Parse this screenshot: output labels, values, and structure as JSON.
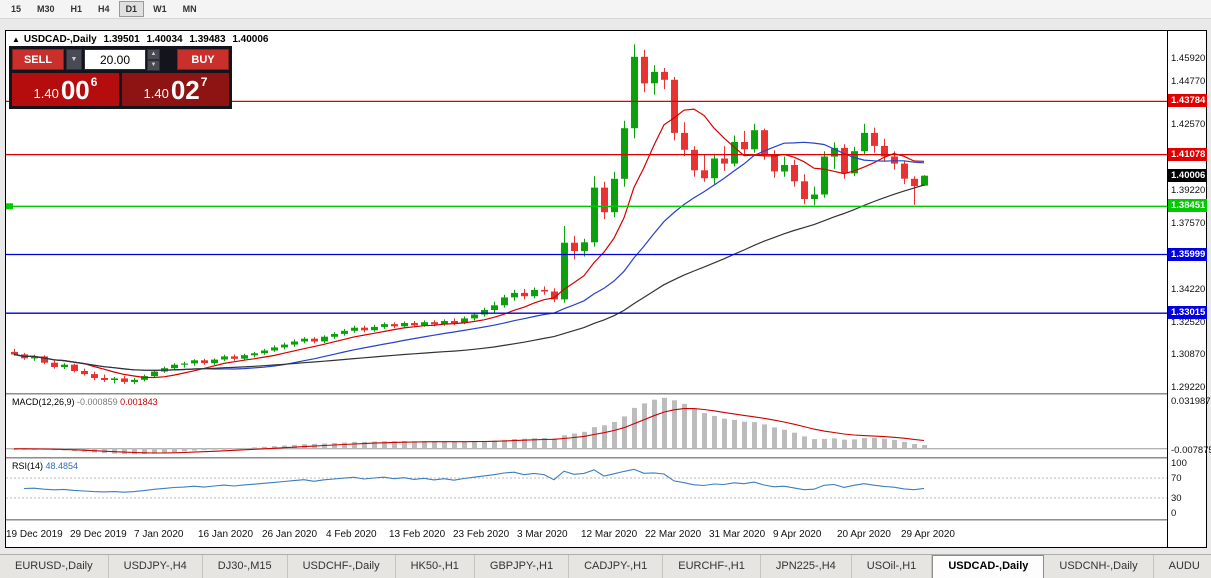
{
  "toolbar": {
    "timeframes": [
      {
        "label": "15",
        "active": false
      },
      {
        "label": "M30",
        "active": false
      },
      {
        "label": "H1",
        "active": false
      },
      {
        "label": "H4",
        "active": false
      },
      {
        "label": "D1",
        "active": true
      },
      {
        "label": "W1",
        "active": false
      },
      {
        "label": "MN",
        "active": false
      }
    ]
  },
  "chart_header": {
    "symbol": "USDCAD-,Daily",
    "open": "1.39501",
    "high": "1.40034",
    "low": "1.39483",
    "close": "1.40006"
  },
  "trade_panel": {
    "sell_label": "SELL",
    "buy_label": "BUY",
    "volume": "20.00",
    "sell_price": {
      "prefix": "1.40",
      "big": "00",
      "sup": "6"
    },
    "buy_price": {
      "prefix": "1.40",
      "big": "02",
      "sup": "7"
    }
  },
  "chart_data": {
    "type": "candlestick",
    "title": "USDCAD-,Daily",
    "symbol": "USDCAD-",
    "timeframe": "Daily",
    "price_range": {
      "top": 1.4736,
      "bottom": 1.2896
    },
    "price_axis_ticks": [
      1.4592,
      1.4477,
      1.4257,
      1.3922,
      1.3757,
      1.3422,
      1.3252,
      1.3087,
      1.2922
    ],
    "x_labels": [
      "19 Dec 2019",
      "29 Dec 2019",
      "7 Jan 2020",
      "16 Jan 2020",
      "26 Jan 2020",
      "4 Feb 2020",
      "13 Feb 2020",
      "23 Feb 2020",
      "3 Mar 2020",
      "12 Mar 2020",
      "22 Mar 2020",
      "31 Mar 2020",
      "9 Apr 2020",
      "20 Apr 2020",
      "29 Apr 2020"
    ],
    "colors": {
      "bull": "#0da00d",
      "bear": "#e83333"
    },
    "levels": [
      {
        "price": 1.43784,
        "label": "1.43784",
        "color": "#e10000",
        "left_marker": false
      },
      {
        "price": 1.41078,
        "label": "1.41078",
        "color": "#e10000",
        "left_marker": false
      },
      {
        "price": 1.38451,
        "label": "1.38451",
        "color": "#00cb00",
        "left_marker": true
      },
      {
        "price": 1.35999,
        "label": "1.35999",
        "color": "#0000e1",
        "left_marker": false
      },
      {
        "price": 1.33015,
        "label": "1.33015",
        "color": "#0000e1",
        "left_marker": false
      }
    ],
    "current_price": {
      "price": 1.40006,
      "label": "1.40006",
      "color": "#000000"
    },
    "moving_averages": [
      {
        "period": 8,
        "color": "#d40000"
      },
      {
        "period": 20,
        "color": "#2742c8"
      },
      {
        "period": 45,
        "color": "#333333"
      }
    ],
    "macd": {
      "label": "MACD(12,26,9)",
      "value_main": "-0.000859",
      "value_signal": "0.001843",
      "fast": 12,
      "slow": 26,
      "signal": 9,
      "axis_labels": [
        "0.031987",
        "-0.007875"
      ],
      "histogram_color": "#bcbcbc",
      "signal_color": "#cc0000"
    },
    "rsi": {
      "label": "RSI(14)",
      "value": "48.4854",
      "period": 14,
      "axis_labels": [
        "100",
        "70",
        "30",
        "0"
      ],
      "guide_levels": [
        70,
        30
      ],
      "color": "#3c7ebf"
    },
    "candles": [
      [
        1.3105,
        1.312,
        1.3085,
        1.3092
      ],
      [
        1.3092,
        1.31,
        1.3065,
        1.3072
      ],
      [
        1.3072,
        1.309,
        1.306,
        1.3082
      ],
      [
        1.3082,
        1.3088,
        1.3042,
        1.305
      ],
      [
        1.305,
        1.3062,
        1.302,
        1.3028
      ],
      [
        1.3028,
        1.3048,
        1.3018,
        1.304
      ],
      [
        1.304,
        1.3045,
        1.3,
        1.3008
      ],
      [
        1.3008,
        1.302,
        1.2985,
        1.2992
      ],
      [
        1.2992,
        1.3005,
        1.296,
        1.2972
      ],
      [
        1.2972,
        1.299,
        1.2952,
        1.2962
      ],
      [
        1.2962,
        1.2978,
        1.2945,
        1.297
      ],
      [
        1.297,
        1.2982,
        1.2942,
        1.2952
      ],
      [
        1.2952,
        1.2972,
        1.294,
        1.2963
      ],
      [
        1.2963,
        1.299,
        1.2955,
        1.2982
      ],
      [
        1.2982,
        1.3012,
        1.2975,
        1.3005
      ],
      [
        1.3005,
        1.303,
        1.2998,
        1.3022
      ],
      [
        1.3022,
        1.3048,
        1.3012,
        1.304
      ],
      [
        1.304,
        1.3055,
        1.3025,
        1.3046
      ],
      [
        1.3046,
        1.3068,
        1.3035,
        1.3062
      ],
      [
        1.3062,
        1.307,
        1.304,
        1.3048
      ],
      [
        1.3048,
        1.3072,
        1.304,
        1.3066
      ],
      [
        1.3066,
        1.309,
        1.3058,
        1.3082
      ],
      [
        1.3082,
        1.3092,
        1.306,
        1.307
      ],
      [
        1.307,
        1.3095,
        1.3062,
        1.3088
      ],
      [
        1.3088,
        1.3105,
        1.3078,
        1.3098
      ],
      [
        1.3098,
        1.312,
        1.309,
        1.3112
      ],
      [
        1.3112,
        1.3138,
        1.3105,
        1.3128
      ],
      [
        1.3128,
        1.3152,
        1.3118,
        1.3142
      ],
      [
        1.3142,
        1.3168,
        1.3132,
        1.3158
      ],
      [
        1.3158,
        1.318,
        1.3148,
        1.3172
      ],
      [
        1.3172,
        1.318,
        1.3148,
        1.3158
      ],
      [
        1.3158,
        1.319,
        1.315,
        1.3182
      ],
      [
        1.3182,
        1.3205,
        1.3172,
        1.3196
      ],
      [
        1.3196,
        1.3222,
        1.3188,
        1.3212
      ],
      [
        1.3212,
        1.3238,
        1.3202,
        1.3228
      ],
      [
        1.3228,
        1.3238,
        1.3205,
        1.3215
      ],
      [
        1.3215,
        1.3242,
        1.3208,
        1.3232
      ],
      [
        1.3232,
        1.3255,
        1.3222,
        1.3246
      ],
      [
        1.3246,
        1.3256,
        1.3225,
        1.3235
      ],
      [
        1.3235,
        1.326,
        1.3228,
        1.3252
      ],
      [
        1.3252,
        1.3262,
        1.323,
        1.324
      ],
      [
        1.324,
        1.3265,
        1.3232,
        1.3256
      ],
      [
        1.3256,
        1.3266,
        1.3235,
        1.3245
      ],
      [
        1.3245,
        1.327,
        1.3238,
        1.3262
      ],
      [
        1.3262,
        1.3275,
        1.324,
        1.3252
      ],
      [
        1.3252,
        1.3285,
        1.3245,
        1.3275
      ],
      [
        1.3275,
        1.3305,
        1.3265,
        1.3295
      ],
      [
        1.3295,
        1.333,
        1.3285,
        1.3318
      ],
      [
        1.3318,
        1.336,
        1.3305,
        1.3342
      ],
      [
        1.3342,
        1.3395,
        1.333,
        1.3382
      ],
      [
        1.3382,
        1.342,
        1.3365,
        1.3405
      ],
      [
        1.3405,
        1.3425,
        1.3372,
        1.3388
      ],
      [
        1.3388,
        1.3432,
        1.3378,
        1.342
      ],
      [
        1.342,
        1.3438,
        1.3395,
        1.3412
      ],
      [
        1.3412,
        1.3428,
        1.3358,
        1.3372
      ],
      [
        1.3372,
        1.3745,
        1.3355,
        1.366
      ],
      [
        1.366,
        1.3695,
        1.3575,
        1.3618
      ],
      [
        1.3618,
        1.368,
        1.359,
        1.3662
      ],
      [
        1.3662,
        1.3998,
        1.364,
        1.394
      ],
      [
        1.394,
        1.397,
        1.378,
        1.3815
      ],
      [
        1.3815,
        1.402,
        1.379,
        1.3985
      ],
      [
        1.3985,
        1.428,
        1.3945,
        1.4242
      ],
      [
        1.4242,
        1.4668,
        1.419,
        1.4605
      ],
      [
        1.4605,
        1.464,
        1.4425,
        1.447
      ],
      [
        1.447,
        1.4562,
        1.4412,
        1.4528
      ],
      [
        1.4528,
        1.4548,
        1.444,
        1.4488
      ],
      [
        1.4488,
        1.4502,
        1.418,
        1.4218
      ],
      [
        1.4218,
        1.4272,
        1.41,
        1.4132
      ],
      [
        1.4132,
        1.415,
        1.3995,
        1.4028
      ],
      [
        1.4028,
        1.4105,
        1.397,
        1.3988
      ],
      [
        1.3988,
        1.4112,
        1.3955,
        1.4088
      ],
      [
        1.4088,
        1.415,
        1.4025,
        1.4062
      ],
      [
        1.4062,
        1.4205,
        1.4048,
        1.4172
      ],
      [
        1.4172,
        1.4228,
        1.4105,
        1.4135
      ],
      [
        1.4135,
        1.4265,
        1.4118,
        1.4232
      ],
      [
        1.4232,
        1.424,
        1.4082,
        1.4105
      ],
      [
        1.4105,
        1.413,
        1.399,
        1.4022
      ],
      [
        1.4022,
        1.4098,
        1.3995,
        1.4055
      ],
      [
        1.4055,
        1.4082,
        1.3945,
        1.3972
      ],
      [
        1.3972,
        1.4008,
        1.3855,
        1.3882
      ],
      [
        1.3882,
        1.3945,
        1.385,
        1.3905
      ],
      [
        1.3905,
        1.4125,
        1.3888,
        1.4098
      ],
      [
        1.4098,
        1.417,
        1.4035,
        1.4142
      ],
      [
        1.4142,
        1.416,
        1.3985,
        1.4012
      ],
      [
        1.4012,
        1.4148,
        1.3998,
        1.4125
      ],
      [
        1.4125,
        1.4265,
        1.4105,
        1.4218
      ],
      [
        1.4218,
        1.4245,
        1.4118,
        1.4152
      ],
      [
        1.4152,
        1.4188,
        1.4078,
        1.4098
      ],
      [
        1.4098,
        1.4125,
        1.4032,
        1.4062
      ],
      [
        1.4062,
        1.4078,
        1.3958,
        1.3985
      ],
      [
        1.3985,
        1.3998,
        1.3852,
        1.3948
      ],
      [
        1.39501,
        1.40034,
        1.39483,
        1.40006
      ]
    ]
  },
  "tabs": [
    {
      "label": "EURUSD-,Daily",
      "active": false
    },
    {
      "label": "USDJPY-,H4",
      "active": false
    },
    {
      "label": "DJ30-,M15",
      "active": false
    },
    {
      "label": "USDCHF-,Daily",
      "active": false
    },
    {
      "label": "HK50-,H1",
      "active": false
    },
    {
      "label": "GBPJPY-,H1",
      "active": false
    },
    {
      "label": "CADJPY-,H1",
      "active": false
    },
    {
      "label": "EURCHF-,H1",
      "active": false
    },
    {
      "label": "JPN225-,H4",
      "active": false
    },
    {
      "label": "USOil-,H1",
      "active": false
    },
    {
      "label": "USDCAD-,Daily",
      "active": true
    },
    {
      "label": "USDCNH-,Daily",
      "active": false
    },
    {
      "label": "AUDU",
      "active": false
    }
  ]
}
